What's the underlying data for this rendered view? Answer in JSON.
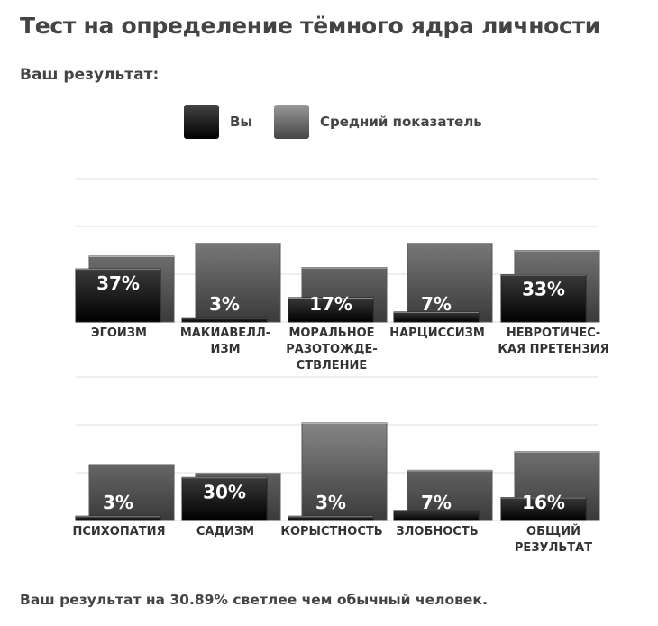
{
  "title": "Тест на определение тёмного ядра личности",
  "subtitle": "Ваш результат:",
  "footer": "Ваш результат на 30.89% светлее чем обычный человек.",
  "colors": {
    "you": "#000000",
    "average": "#666666",
    "grid": "#e8e8e8"
  },
  "chart_data": {
    "type": "bar",
    "legend": [
      "Вы",
      "Средний показатель"
    ],
    "legend_position": "top",
    "ylim": [
      0,
      100
    ],
    "grid": true,
    "rows": [
      {
        "categories": [
          [
            "ЭГОИЗМ"
          ],
          [
            "МАКИАВЕЛЛ-",
            "ИЗМ"
          ],
          [
            "МОРАЛЬНОЕ",
            "РАЗОТОЖДЕ-",
            "СТВЛЕНИЕ"
          ],
          [
            "НАРЦИССИЗМ"
          ],
          [
            "НЕВРОТИЧЕС-",
            "КАЯ ПРЕТЕНЗИЯ"
          ]
        ],
        "series": [
          {
            "name": "Вы",
            "values": [
              37,
              3,
              17,
              7,
              33
            ],
            "labels": [
              "37%",
              "3%",
              "17%",
              "7%",
              "33%"
            ]
          },
          {
            "name": "Средний показатель",
            "values": [
              46,
              55,
              38,
              55,
              50
            ]
          }
        ]
      },
      {
        "categories": [
          [
            "ПСИХОПАТИЯ"
          ],
          [
            "САДИЗМ"
          ],
          [
            "КОРЫСТНОСТЬ"
          ],
          [
            "ЗЛОБНОСТЬ"
          ],
          [
            "ОБЩИЙ",
            "РЕЗУЛЬТАТ"
          ]
        ],
        "series": [
          {
            "name": "Вы",
            "values": [
              3,
              30,
              3,
              7,
              16
            ],
            "labels": [
              "3%",
              "30%",
              "3%",
              "7%",
              "16%"
            ]
          },
          {
            "name": "Средний показатель",
            "values": [
              39,
              33,
              68,
              35,
              48
            ]
          }
        ]
      }
    ]
  }
}
